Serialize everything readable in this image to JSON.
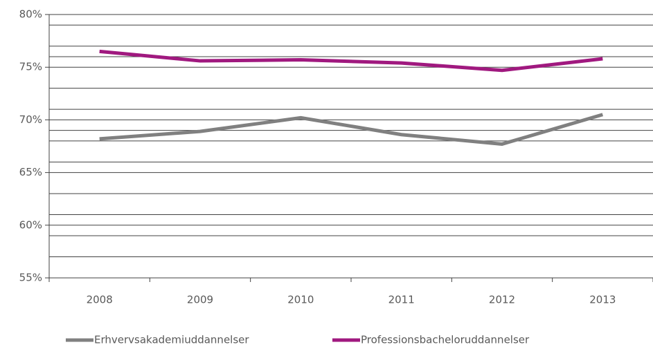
{
  "chart_data": {
    "type": "line",
    "categories": [
      "2008",
      "2009",
      "2010",
      "2011",
      "2012",
      "2013"
    ],
    "series": [
      {
        "name": "Erhvervsakademiuddannelser",
        "color": "#808080",
        "values": [
          68.2,
          68.9,
          70.2,
          68.6,
          67.7,
          70.5
        ]
      },
      {
        "name": "Professionsbacheloruddannelser",
        "color": "#a0197f",
        "values": [
          76.5,
          75.6,
          75.7,
          75.4,
          74.7,
          75.8
        ]
      }
    ],
    "ylim": [
      55,
      80
    ],
    "yticks": [
      {
        "value": 55,
        "label": "55%"
      },
      {
        "value": 60,
        "label": "60%"
      },
      {
        "value": 65,
        "label": "65%"
      },
      {
        "value": 70,
        "label": "70%"
      },
      {
        "value": 75,
        "label": "75%"
      },
      {
        "value": 80,
        "label": "80%"
      }
    ],
    "minor_yticks": [
      57,
      59,
      61,
      63,
      66,
      68,
      69,
      71,
      73,
      76,
      77,
      79
    ],
    "grid": true,
    "legend": "bottom"
  }
}
